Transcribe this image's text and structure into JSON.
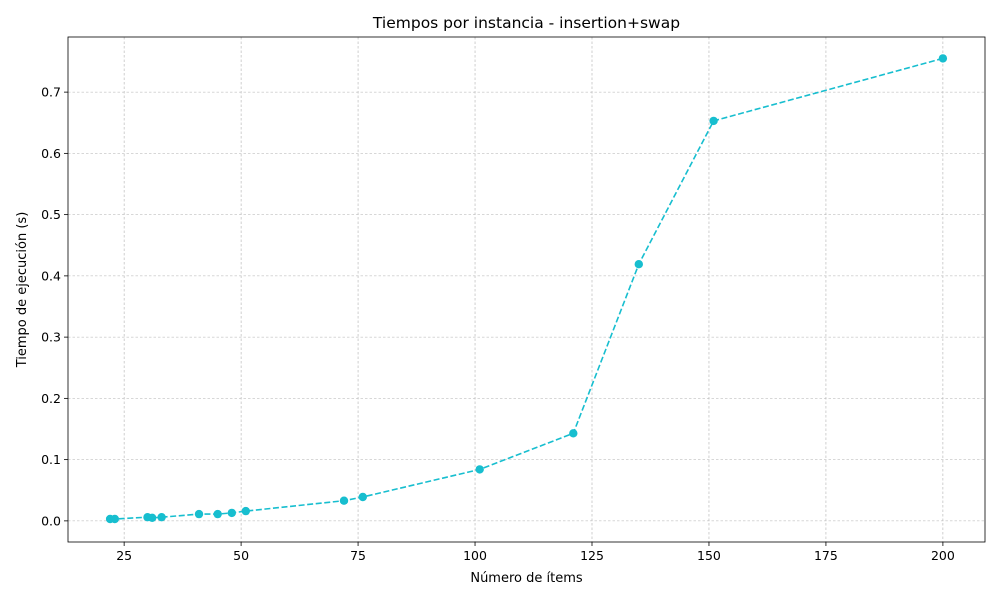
{
  "chart_data": {
    "type": "line",
    "title": "Tiempos por instancia - insertion+swap",
    "xlabel": "Número de ítems",
    "ylabel": "Tiempo de ejecución (s)",
    "xlim": [
      13,
      209
    ],
    "ylim": [
      -0.0345,
      0.79
    ],
    "xticks": [
      25,
      50,
      75,
      100,
      125,
      150,
      175,
      200
    ],
    "yticks": [
      0.0,
      0.1,
      0.2,
      0.3,
      0.4,
      0.5,
      0.6,
      0.7
    ],
    "ytick_labels": [
      "0.0",
      "0.1",
      "0.2",
      "0.3",
      "0.4",
      "0.5",
      "0.6",
      "0.7"
    ],
    "grid": true,
    "color": "#17becf",
    "line_style": "dashed",
    "marker": "circle",
    "series": [
      {
        "x": [
          22,
          23,
          30,
          31,
          33,
          41,
          45,
          48,
          51,
          72,
          76,
          101,
          121,
          135,
          151,
          200
        ],
        "y": [
          0.003,
          0.003,
          0.006,
          0.005,
          0.006,
          0.011,
          0.011,
          0.013,
          0.016,
          0.033,
          0.039,
          0.084,
          0.143,
          0.419,
          0.653,
          0.755
        ]
      }
    ]
  }
}
